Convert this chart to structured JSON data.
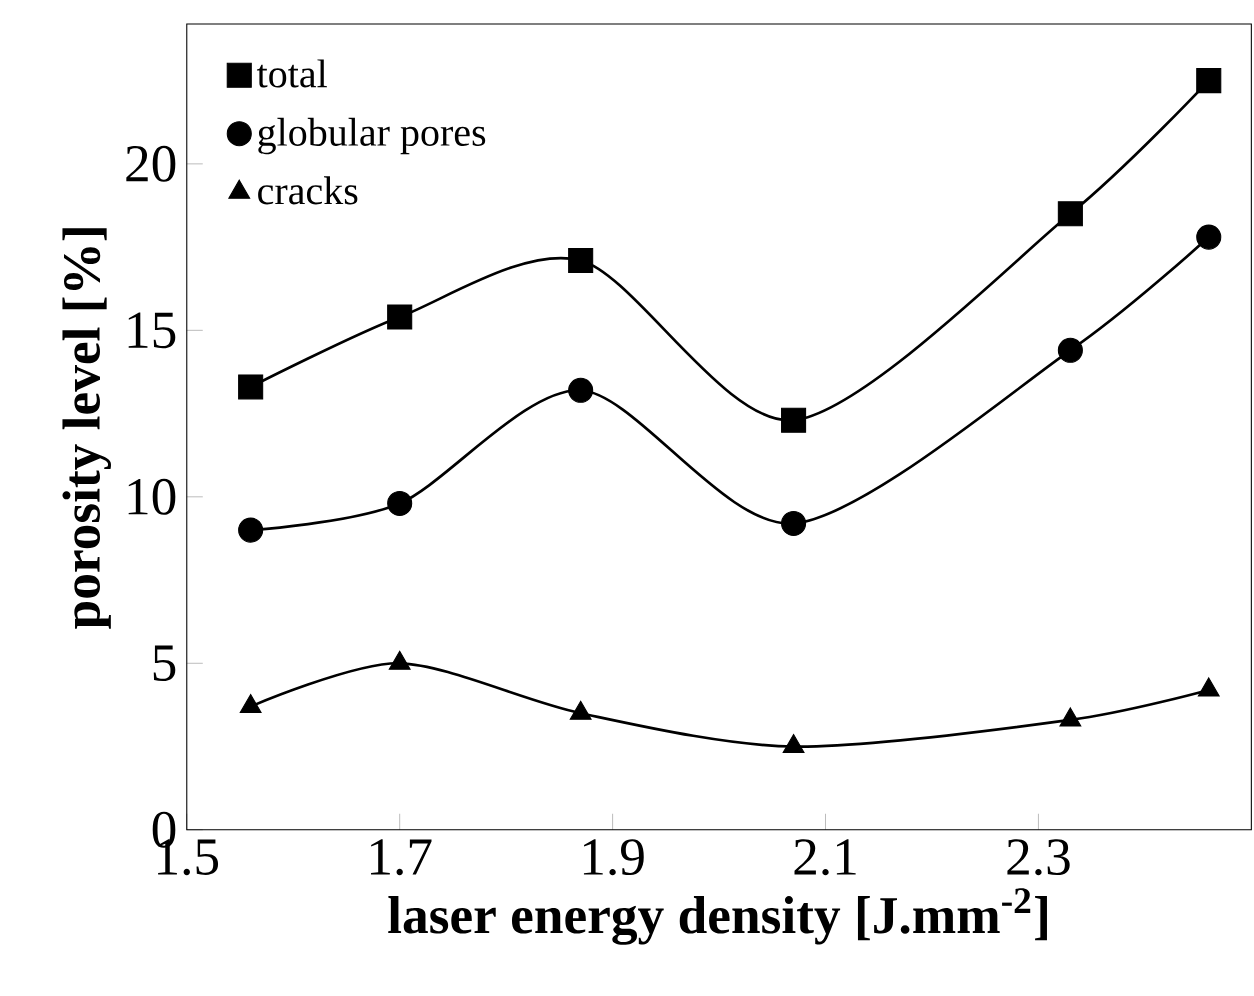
{
  "chart_data": {
    "type": "line",
    "xlabel": "laser energy density [J.mm$^{-2}$]",
    "ylabel": "porosity level [%]",
    "xlim": [
      1.5,
      2.5
    ],
    "xticks": [
      1.5,
      1.7,
      1.9,
      2.1,
      2.3
    ],
    "ylim": [
      0,
      24.2
    ],
    "yticks": [
      0,
      5,
      10,
      15,
      20
    ],
    "x": [
      1.56,
      1.7,
      1.87,
      2.07,
      2.33,
      2.46
    ],
    "series": [
      {
        "name": "total",
        "color": "#000000",
        "marker": "square",
        "values": [
          13.3,
          15.4,
          17.1,
          12.3,
          18.5,
          22.5
        ]
      },
      {
        "name": "globular pores",
        "color": "#000000",
        "marker": "circle",
        "values": [
          9.0,
          9.8,
          13.2,
          9.2,
          14.4,
          17.8
        ]
      },
      {
        "name": "cracks",
        "color": "#000000",
        "marker": "triangle",
        "values": [
          3.7,
          5.0,
          3.5,
          2.5,
          3.3,
          4.2
        ]
      }
    ],
    "legend": "top left",
    "grid": false
  }
}
